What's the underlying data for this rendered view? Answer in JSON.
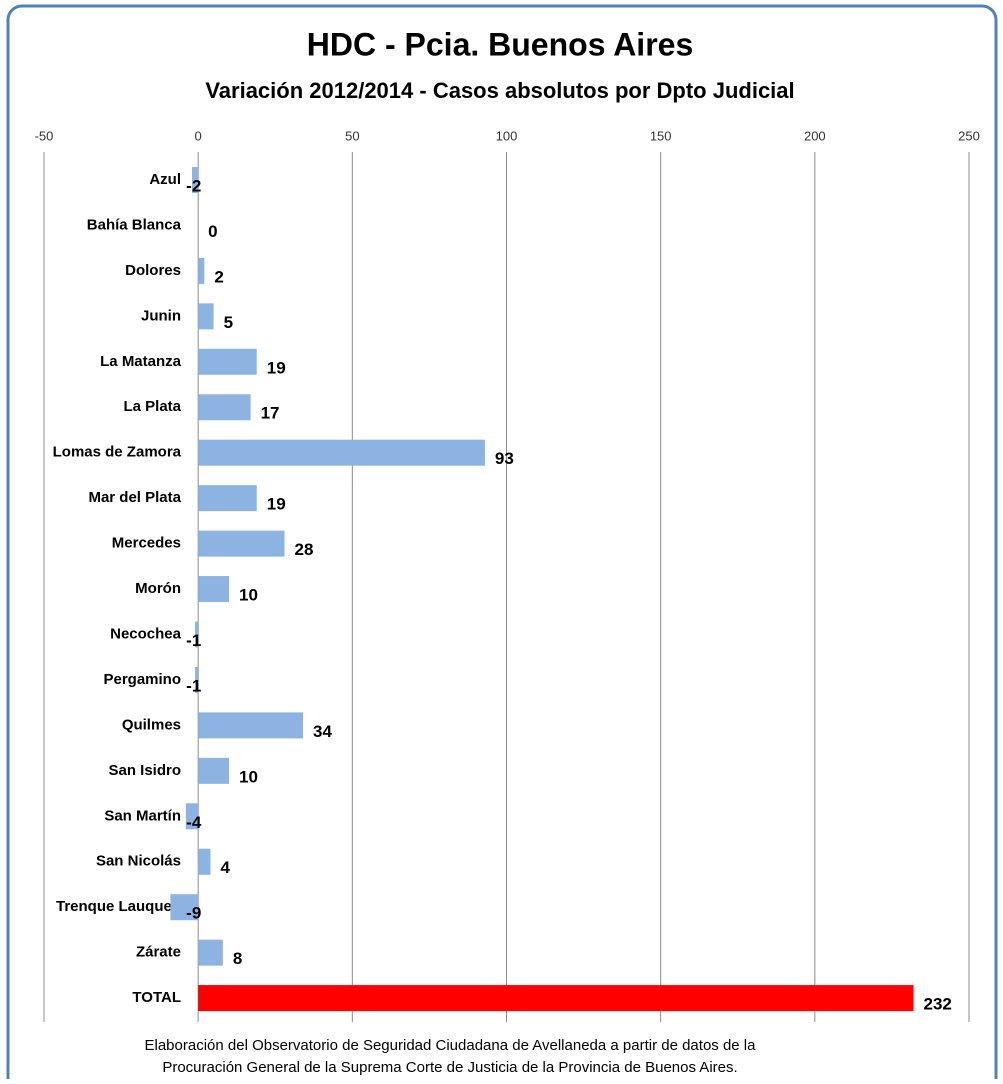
{
  "chart_data": {
    "type": "barh",
    "title": "HDC - Pcia. Buenos Aires",
    "subtitle": "Variación 2012/2014 - Casos absolutos por Dpto Judicial",
    "categories": [
      "Azul",
      "Bahía Blanca",
      "Dolores",
      "Junin",
      "La Matanza",
      "La Plata",
      "Lomas de Zamora",
      "Mar del Plata",
      "Mercedes",
      "Morón",
      "Necochea",
      "Pergamino",
      "Quilmes",
      "San Isidro",
      "San Martín",
      "San Nicolás",
      "Trenque Lauquen",
      "Zárate",
      "TOTAL"
    ],
    "values": [
      -2,
      0,
      2,
      5,
      19,
      17,
      93,
      19,
      28,
      10,
      -1,
      -1,
      34,
      10,
      -4,
      4,
      -9,
      8,
      232
    ],
    "colors": [
      "#8db3e2",
      "#8db3e2",
      "#8db3e2",
      "#8db3e2",
      "#8db3e2",
      "#8db3e2",
      "#8db3e2",
      "#8db3e2",
      "#8db3e2",
      "#8db3e2",
      "#8db3e2",
      "#8db3e2",
      "#8db3e2",
      "#8db3e2",
      "#8db3e2",
      "#8db3e2",
      "#8db3e2",
      "#8db3e2",
      "#ff0000"
    ],
    "xlim": [
      -50,
      250
    ],
    "xticks": [
      -50,
      0,
      50,
      100,
      150,
      200,
      250
    ],
    "grid": true,
    "source": [
      "Elaboración del Observatorio de Seguridad Ciudadana de Avellaneda a partir de datos de la",
      "Procuración General de la Suprema Corte de Justicia de la Provincia de Buenos Aires."
    ]
  }
}
